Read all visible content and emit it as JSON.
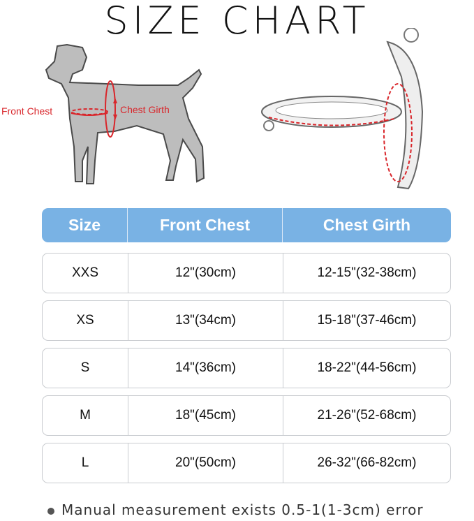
{
  "title": "SIZE CHART",
  "diagram": {
    "front_chest_label": "Front Chest",
    "chest_girth_label": "Chest Girth",
    "accent_color": "#d9262b"
  },
  "table": {
    "headers": [
      "Size",
      "Front Chest",
      "Chest Girth"
    ],
    "header_color": "#79b2e4",
    "rows": [
      {
        "size": "XXS",
        "front_chest": "12\"(30cm)",
        "chest_girth": "12-15\"(32-38cm)"
      },
      {
        "size": "XS",
        "front_chest": "13\"(34cm)",
        "chest_girth": "15-18\"(37-46cm)"
      },
      {
        "size": "S",
        "front_chest": "14\"(36cm)",
        "chest_girth": "18-22\"(44-56cm)"
      },
      {
        "size": "M",
        "front_chest": "18\"(45cm)",
        "chest_girth": "21-26\"(52-68cm)"
      },
      {
        "size": "L",
        "front_chest": "20\"(50cm)",
        "chest_girth": "26-32\"(66-82cm)"
      }
    ]
  },
  "note": "Manual measurement exists 0.5-1(1-3cm) error"
}
